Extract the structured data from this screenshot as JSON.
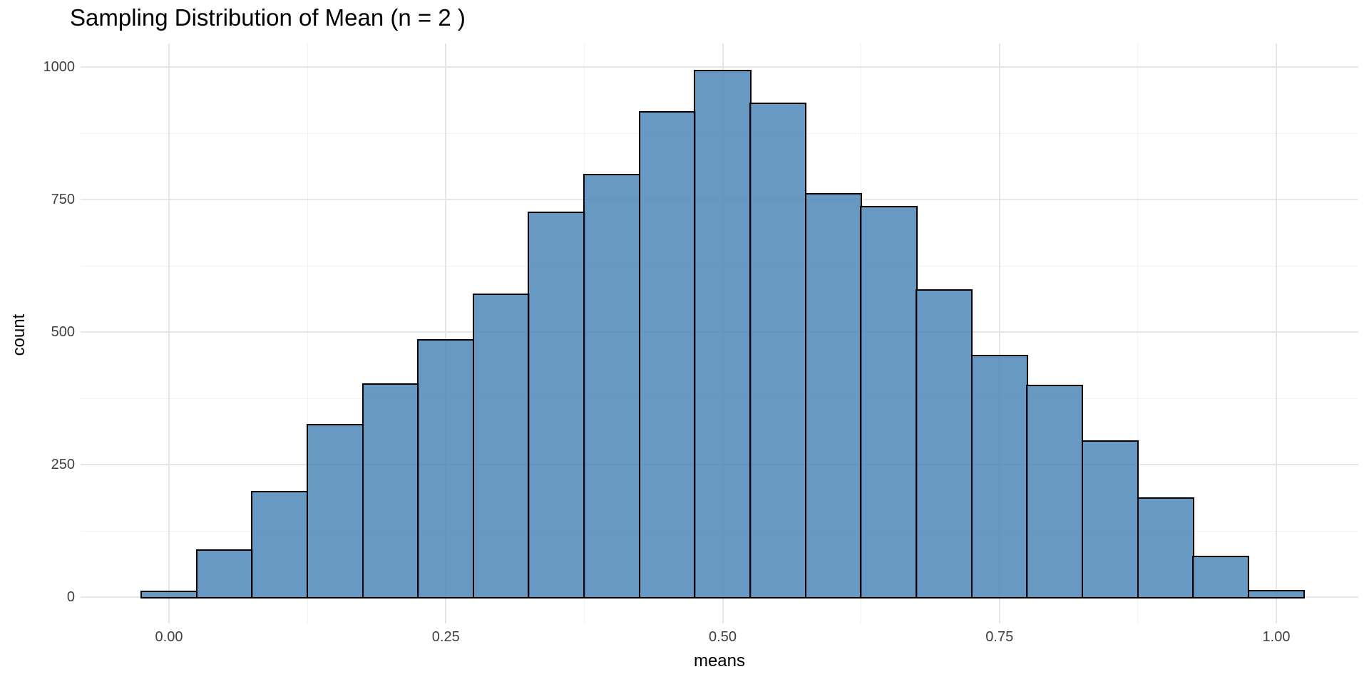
{
  "chart_data": {
    "type": "bar",
    "subtype": "histogram",
    "title": "Sampling Distribution of Mean (n = 2 )",
    "xlabel": "means",
    "ylabel": "count",
    "binwidth": 0.05,
    "bin_centers": [
      0.0,
      0.05,
      0.1,
      0.15,
      0.2,
      0.25,
      0.3,
      0.35,
      0.4,
      0.45,
      0.5,
      0.55,
      0.6,
      0.65,
      0.7,
      0.75,
      0.8,
      0.85,
      0.9,
      0.95,
      1.0
    ],
    "values": [
      12,
      90,
      200,
      327,
      403,
      487,
      573,
      727,
      799,
      916,
      995,
      933,
      762,
      738,
      581,
      457,
      400,
      296,
      188,
      78,
      13
    ],
    "x_ticks": [
      {
        "value": 0.0,
        "label": "0.00"
      },
      {
        "value": 0.25,
        "label": "0.25"
      },
      {
        "value": 0.5,
        "label": "0.50"
      },
      {
        "value": 0.75,
        "label": "0.75"
      },
      {
        "value": 1.0,
        "label": "1.00"
      }
    ],
    "y_ticks": [
      {
        "value": 0,
        "label": "0"
      },
      {
        "value": 250,
        "label": "250"
      },
      {
        "value": 500,
        "label": "500"
      },
      {
        "value": 750,
        "label": "750"
      },
      {
        "value": 1000,
        "label": "1000"
      }
    ],
    "x_minor_gridlines": [
      0.125,
      0.375,
      0.625,
      0.875
    ],
    "y_minor_gridlines": [
      125,
      375,
      625,
      875
    ],
    "xlim": [
      -0.08,
      1.075
    ],
    "ylim": [
      -50,
      1044
    ],
    "grid": true,
    "legend": "none",
    "colors": {
      "bar_fill": "#4682B4",
      "bar_fill_alpha": 0.82,
      "bar_stroke": "#000000",
      "grid_major": "#e6e6e6",
      "grid_minor": "#f2f2f2",
      "tick_text": "#404040",
      "title_text": "#000000",
      "background": "#ffffff"
    }
  }
}
